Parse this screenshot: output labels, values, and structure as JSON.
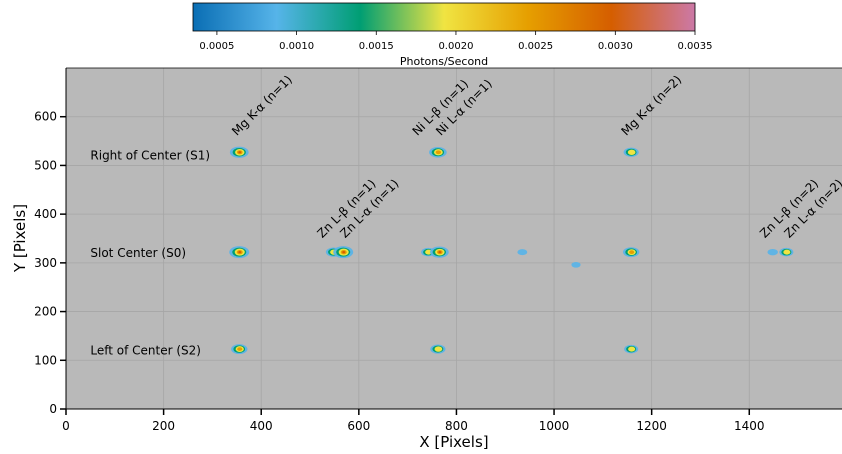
{
  "chart_data": {
    "type": "heatmap",
    "title": "",
    "xlabel": "X [Pixels]",
    "ylabel": "Y [Pixels]",
    "xlim": [
      0,
      1590
    ],
    "ylim": [
      0,
      700
    ],
    "xticks": [
      0,
      200,
      400,
      600,
      800,
      1000,
      1200,
      1400
    ],
    "yticks": [
      0,
      100,
      200,
      300,
      400,
      500,
      600
    ],
    "grid": true,
    "background_color": "#b9b9b9",
    "colorbar": {
      "label": "Photons/Second",
      "min": 0.00035,
      "max": 0.0035,
      "ticks": [
        "0.0005",
        "0.0010",
        "0.0015",
        "0.0020",
        "0.0025",
        "0.0030",
        "0.0035"
      ],
      "tick_values": [
        0.0005,
        0.001,
        0.0015,
        0.002,
        0.0025,
        0.003,
        0.0035
      ],
      "colors": [
        "#0a6eb4",
        "#56b4e9",
        "#009e73",
        "#f0e442",
        "#e69f00",
        "#d55e00",
        "#cc79a7"
      ],
      "placement": "top"
    },
    "row_labels": [
      {
        "text": "Right of Center (S1)",
        "x": 50,
        "y": 520
      },
      {
        "text": "Slot Center (S0)",
        "x": 50,
        "y": 320
      },
      {
        "text": "Left of Center (S2)",
        "x": 50,
        "y": 120
      }
    ],
    "line_labels": [
      {
        "text": "Mg K-α (n=1)",
        "x": 350,
        "y": 560
      },
      {
        "text": "Ni L-β (n=1)",
        "x": 720,
        "y": 560
      },
      {
        "text": "Ni L-α (n=1)",
        "x": 768,
        "y": 560
      },
      {
        "text": "Mg K-α (n=2)",
        "x": 1148,
        "y": 560
      },
      {
        "text": "Zn L-β (n=1)",
        "x": 525,
        "y": 350
      },
      {
        "text": "Zn L-α (n=1)",
        "x": 572,
        "y": 350
      },
      {
        "text": "Zn L-β (n=2)",
        "x": 1432,
        "y": 350
      },
      {
        "text": "Zn L-α (n=2)",
        "x": 1482,
        "y": 350
      }
    ],
    "spots": [
      {
        "x": 355,
        "y": 527,
        "level": 0.9
      },
      {
        "x": 762,
        "y": 527,
        "level": 0.8
      },
      {
        "x": 1158,
        "y": 527,
        "level": 0.6
      },
      {
        "x": 355,
        "y": 322,
        "level": 1.0
      },
      {
        "x": 548,
        "y": 322,
        "level": 0.6
      },
      {
        "x": 568,
        "y": 322,
        "level": 1.0
      },
      {
        "x": 742,
        "y": 322,
        "level": 0.5
      },
      {
        "x": 765,
        "y": 322,
        "level": 0.9
      },
      {
        "x": 935,
        "y": 322,
        "level": 0.15
      },
      {
        "x": 1045,
        "y": 296,
        "level": 0.1
      },
      {
        "x": 1158,
        "y": 322,
        "level": 0.7
      },
      {
        "x": 1448,
        "y": 322,
        "level": 0.2
      },
      {
        "x": 1476,
        "y": 322,
        "level": 0.5
      },
      {
        "x": 355,
        "y": 123,
        "level": 0.7
      },
      {
        "x": 762,
        "y": 123,
        "level": 0.6
      },
      {
        "x": 1158,
        "y": 123,
        "level": 0.5
      }
    ]
  }
}
